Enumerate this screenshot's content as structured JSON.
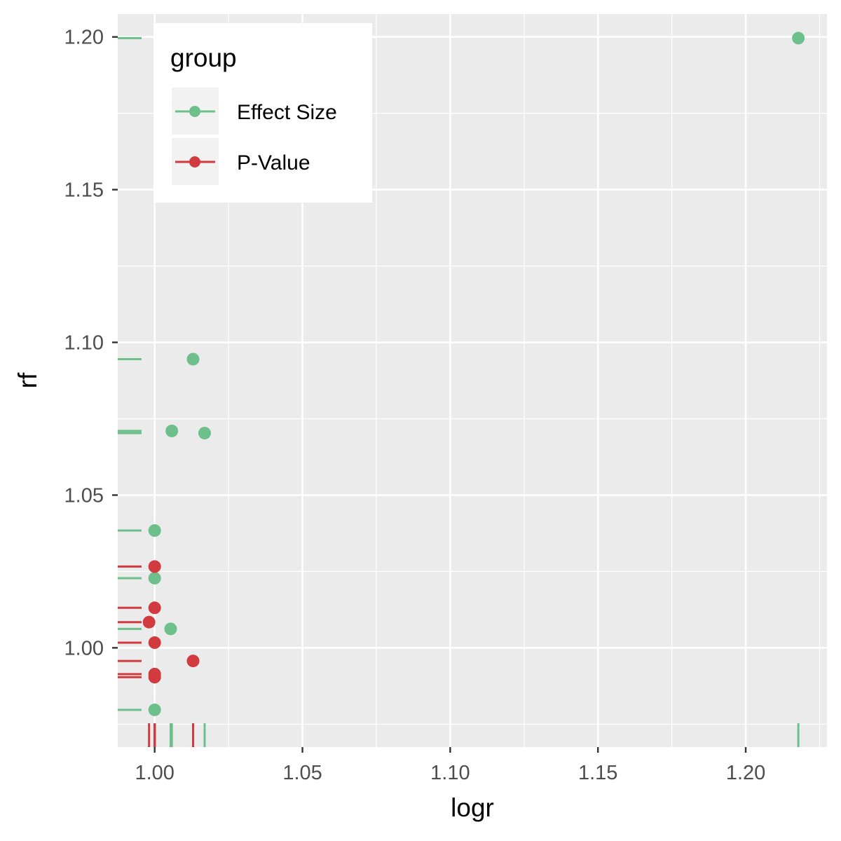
{
  "chart_data": {
    "type": "scatter",
    "xlabel": "logr",
    "ylabel": "rf",
    "xlim": [
      0.9875,
      1.2275
    ],
    "ylim": [
      0.9675,
      1.2075
    ],
    "x_ticks": [
      1.0,
      1.05,
      1.1,
      1.15,
      1.2
    ],
    "y_ticks": [
      1.0,
      1.05,
      1.1,
      1.15,
      1.2
    ],
    "x_tick_labels": [
      "1.00",
      "1.05",
      "1.10",
      "1.15",
      "1.20"
    ],
    "y_tick_labels": [
      "1.00",
      "1.05",
      "1.10",
      "1.15",
      "1.20"
    ],
    "grid": true,
    "rug": true,
    "legend": {
      "title": "group",
      "placement": "top-left"
    },
    "series": [
      {
        "name": "Effect Size",
        "color": "#6dbf8b",
        "points": [
          {
            "x": 1.2178,
            "y": 1.1996
          },
          {
            "x": 1.013,
            "y": 1.0945
          },
          {
            "x": 1.0058,
            "y": 1.071
          },
          {
            "x": 1.0169,
            "y": 1.0703
          },
          {
            "x": 1.0,
            "y": 1.0384
          },
          {
            "x": 1.0,
            "y": 1.0228
          },
          {
            "x": 1.0054,
            "y": 1.0062
          },
          {
            "x": 1.0,
            "y": 0.9797
          }
        ]
      },
      {
        "name": "P-Value",
        "color": "#d13b40",
        "points": [
          {
            "x": 1.0,
            "y": 1.0266
          },
          {
            "x": 1.0,
            "y": 1.0131
          },
          {
            "x": 0.9981,
            "y": 1.0084
          },
          {
            "x": 1.0,
            "y": 1.0017
          },
          {
            "x": 1.013,
            "y": 0.9957
          },
          {
            "x": 1.0,
            "y": 0.9914
          },
          {
            "x": 1.0,
            "y": 0.9904
          }
        ]
      }
    ]
  }
}
